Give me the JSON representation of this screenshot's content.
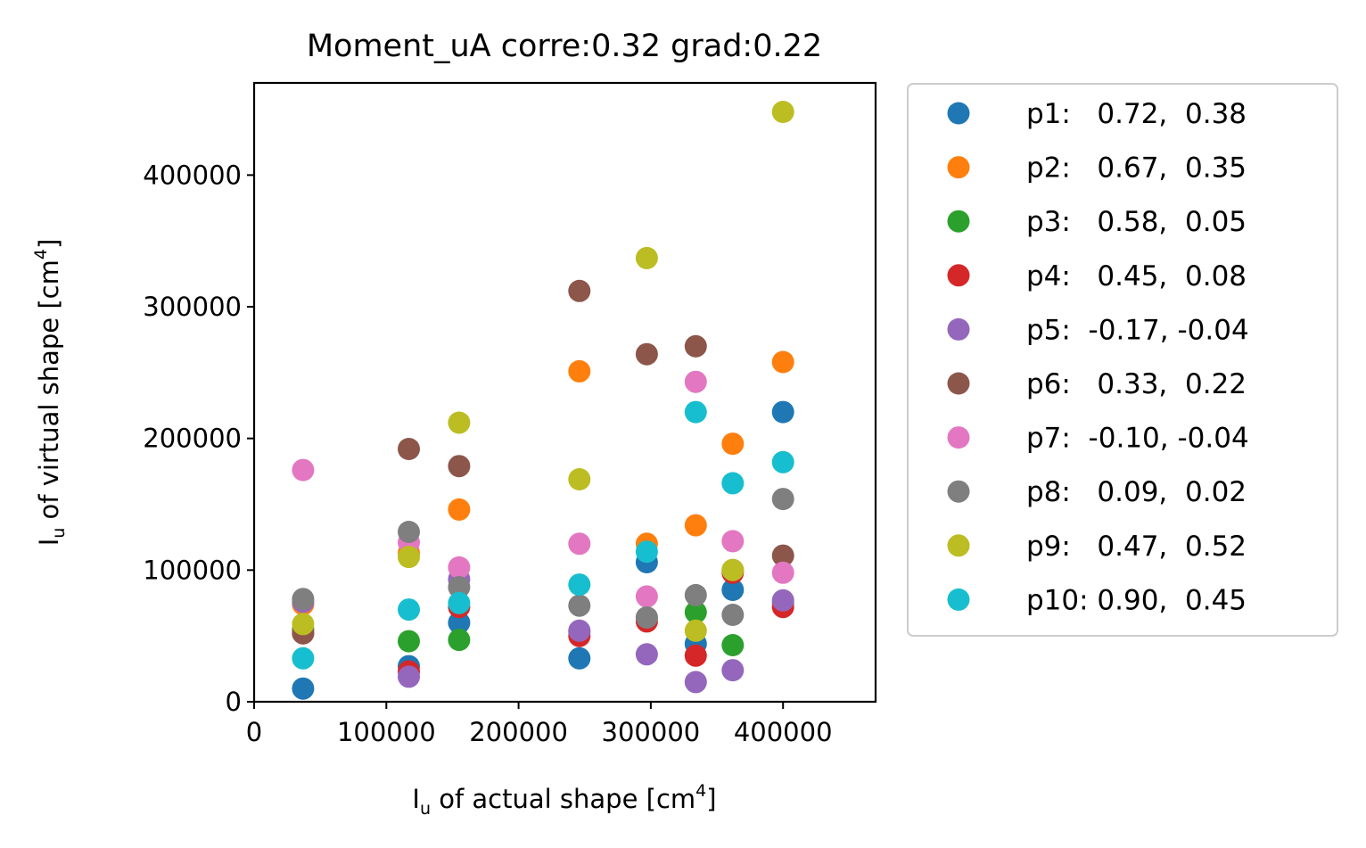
{
  "chart_data": {
    "type": "scatter",
    "title": "Moment_uA corre:0.32 grad:0.22",
    "xlabel": {
      "main": "I",
      "sub": "u",
      "rest": " of actual shape [cm",
      "sup": "4",
      "end": "]"
    },
    "ylabel": {
      "main": "I",
      "sub": "u",
      "rest": " of virtual shape [cm",
      "sup": "4",
      "end": "]"
    },
    "xlim": [
      0,
      470000
    ],
    "ylim": [
      0,
      470000
    ],
    "xticks": [
      0,
      100000,
      200000,
      300000,
      400000
    ],
    "yticks": [
      0,
      100000,
      200000,
      300000,
      400000
    ],
    "grid": false,
    "legend_position": "outside-right",
    "x": [
      37000,
      117000,
      155000,
      246000,
      297000,
      334000,
      362000,
      400000
    ],
    "series": [
      {
        "name": "p1:   0.72,  0.38",
        "color": "#1f77b4",
        "values": [
          10000,
          27000,
          60000,
          33000,
          106000,
          44000,
          85000,
          220000
        ]
      },
      {
        "name": "p2:   0.67,  0.35",
        "color": "#ff7f0e",
        "values": [
          74000,
          113000,
          146000,
          251000,
          120000,
          134000,
          196000,
          258000
        ]
      },
      {
        "name": "p3:   0.58,  0.05",
        "color": "#2ca02c",
        "values": [
          55000,
          46000,
          47000,
          53000,
          64000,
          68000,
          43000,
          75000
        ]
      },
      {
        "name": "p4:   0.45,  0.08",
        "color": "#d62728",
        "values": [
          52000,
          23000,
          72000,
          50000,
          61000,
          35000,
          98000,
          72000
        ]
      },
      {
        "name": "p5:  -0.17, -0.04",
        "color": "#9467bd",
        "values": [
          76000,
          19000,
          93000,
          54000,
          36000,
          15000,
          24000,
          77000
        ]
      },
      {
        "name": "p6:   0.33,  0.22",
        "color": "#8c564b",
        "values": [
          52000,
          192000,
          179000,
          312000,
          264000,
          270000,
          100000,
          111000
        ]
      },
      {
        "name": "p7:  -0.10, -0.04",
        "color": "#e377c2",
        "values": [
          176000,
          121000,
          102000,
          120000,
          80000,
          243000,
          122000,
          98000
        ]
      },
      {
        "name": "p8:   0.09,  0.02",
        "color": "#7f7f7f",
        "values": [
          78000,
          129000,
          87000,
          73000,
          64000,
          81000,
          66000,
          154000
        ]
      },
      {
        "name": "p9:   0.47,  0.52",
        "color": "#bcbd22",
        "values": [
          59000,
          110000,
          212000,
          169000,
          337000,
          54000,
          100000,
          448000
        ]
      },
      {
        "name": "p10: 0.90,  0.45",
        "color": "#17becf",
        "values": [
          33000,
          70000,
          75000,
          89000,
          114000,
          220000,
          166000,
          182000
        ]
      }
    ]
  }
}
